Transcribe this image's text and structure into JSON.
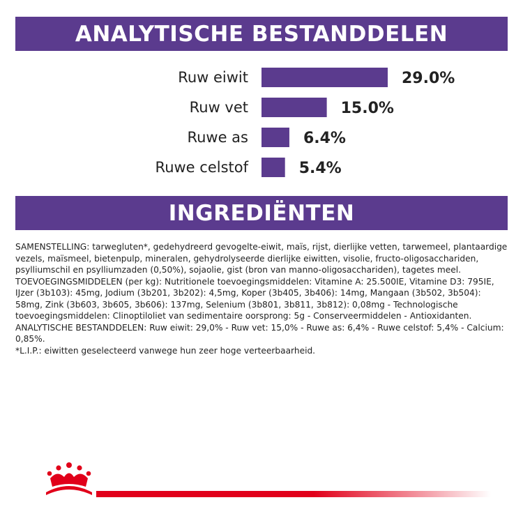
{
  "headers": {
    "analytical": "ANALYTISCHE BESTANDDELEN",
    "ingredients": "INGREDIËNTEN"
  },
  "chart_data": {
    "type": "bar",
    "orientation": "horizontal",
    "categories": [
      "Ruw eiwit",
      "Ruw vet",
      "Ruwe as",
      "Ruwe celstof"
    ],
    "values": [
      29.0,
      15.0,
      6.4,
      5.4
    ],
    "value_labels": [
      "29.0%",
      "15.0%",
      "6.4%",
      "5.4%"
    ],
    "unit": "%",
    "title": "ANALYTISCHE BESTANDDELEN",
    "xlabel": "",
    "ylabel": "",
    "xlim": [
      0,
      29.0
    ],
    "grid": false,
    "bar_color": "#5b3b8e"
  },
  "ingredients": {
    "paragraphs": [
      "SAMENSTELLING: tarwegluten*, gedehydreerd gevogelte-eiwit, maïs, rijst, dierlijke vetten, tarwemeel, plantaardige vezels, maïsmeel, bietenpulp, mineralen, gehydrolyseerde dierlijke eiwitten, visolie, fructo-oligosacchariden, psylliumschil en psylliumzaden (0,50%), sojaolie, gist (bron van manno-oligosacchariden), tagetes meel.",
      "TOEVOEGINGSMIDDELEN (per kg): Nutritionele toevoegingsmiddelen: Vitamine A: 25.500IE, Vitamine D3: 795IE, IJzer (3b103): 45mg, Jodium (3b201, 3b202): 4,5mg, Koper (3b405, 3b406): 14mg, Mangaan (3b502, 3b504): 58mg, Zink (3b603, 3b605, 3b606): 137mg, Selenium (3b801, 3b811, 3b812): 0,08mg - Technologische toevoegingsmiddelen: Clinoptiloliet van sedimentaire oorsprong: 5g - Conserveermiddelen - Antioxidanten.",
      "ANALYTISCHE BESTANDDELEN: Ruw eiwit: 29,0% - Ruw vet: 15,0% - Ruwe as: 6,4% - Ruwe celstof: 5,4% - Calcium: 0,85%.",
      "*L.I.P.: eiwitten geselecteerd vanwege hun zeer hoge verteerbaarheid."
    ]
  },
  "colors": {
    "brand_purple": "#5b3b8e",
    "brand_red": "#e1001a"
  },
  "logo": {
    "icon": "royal-canin-crown-icon"
  }
}
